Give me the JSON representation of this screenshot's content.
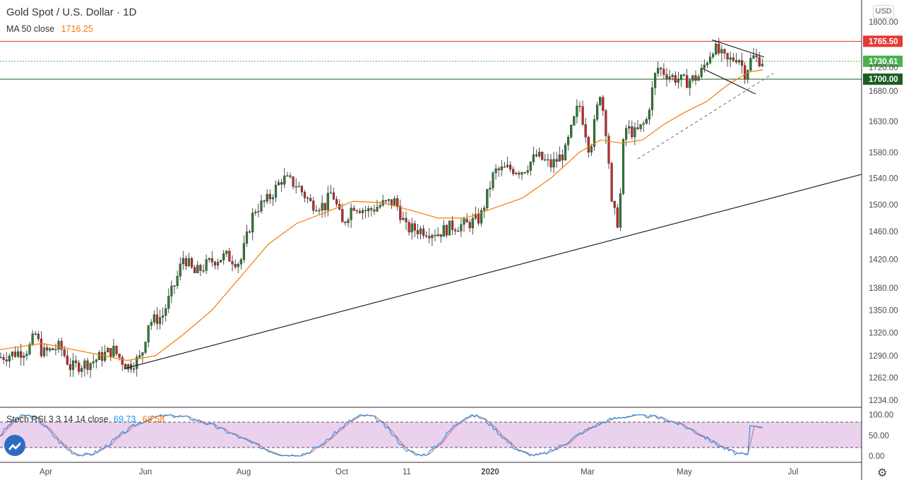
{
  "header": {
    "symbol": "Gold Spot",
    "quote": "U.S. Dollar",
    "interval": "1D",
    "ma_label": "MA 50 close",
    "ma_value": "1716.25"
  },
  "stoch": {
    "label": "Stoch RSI 3 3 14 14 close",
    "k_value": "69.73",
    "d_value": "68.58"
  },
  "currency": "USD",
  "colors": {
    "up": "#26a69a",
    "up_body": "#2e7d32",
    "down": "#c62828",
    "ma": "#f57c00",
    "stoch_k": "#2196f3",
    "stoch_d": "#e57373",
    "band": "#e1bee7",
    "resistance": "#e53935",
    "support": "#1b5e20",
    "price": "#4caf50"
  },
  "chart_data": [
    {
      "type": "candlestick",
      "title": "Gold Spot / U.S. Dollar · 1D",
      "y_axis": {
        "ticks": [
          1800.0,
          1765.5,
          1730.61,
          1720.0,
          1700.0,
          1680.0,
          1630.0,
          1580.0,
          1540.0,
          1500.0,
          1460.0,
          1420.0,
          1380.0,
          1350.0,
          1320.0,
          1290.0,
          1262.0,
          1234.0
        ],
        "scale": "log",
        "range": [
          1230,
          1812
        ]
      },
      "x_axis": {
        "ticks": [
          "Apr",
          "Jun",
          "Aug",
          "Oct",
          "11",
          "2020",
          "Mar",
          "May",
          "Jul"
        ]
      },
      "horizontal_levels": [
        {
          "value": 1765.5,
          "label": "1765.50",
          "color": "#e53935"
        },
        {
          "value": 1700.0,
          "label": "1700.00",
          "color": "#1b5e20"
        },
        {
          "value": 1730.61,
          "label": "1730.61",
          "color": "#4caf50",
          "style": "dotted"
        }
      ],
      "price_path_approx": [
        [
          0,
          1288
        ],
        [
          40,
          1298
        ],
        [
          50,
          1318
        ],
        [
          60,
          1293
        ],
        [
          85,
          1302
        ],
        [
          100,
          1275
        ],
        [
          130,
          1282
        ],
        [
          160,
          1298
        ],
        [
          180,
          1276
        ],
        [
          200,
          1288
        ],
        [
          210,
          1333
        ],
        [
          230,
          1342
        ],
        [
          250,
          1392
        ],
        [
          260,
          1425
        ],
        [
          275,
          1400
        ],
        [
          300,
          1418
        ],
        [
          320,
          1425
        ],
        [
          340,
          1415
        ],
        [
          360,
          1492
        ],
        [
          380,
          1508
        ],
        [
          400,
          1540
        ],
        [
          420,
          1530
        ],
        [
          440,
          1502
        ],
        [
          460,
          1498
        ],
        [
          470,
          1520
        ],
        [
          485,
          1470
        ],
        [
          500,
          1500
        ],
        [
          520,
          1490
        ],
        [
          540,
          1500
        ],
        [
          560,
          1505
        ],
        [
          575,
          1465
        ],
        [
          600,
          1462
        ],
        [
          620,
          1458
        ],
        [
          640,
          1468
        ],
        [
          660,
          1470
        ],
        [
          680,
          1480
        ],
        [
          700,
          1550
        ],
        [
          720,
          1555
        ],
        [
          740,
          1552
        ],
        [
          760,
          1575
        ],
        [
          780,
          1560
        ],
        [
          800,
          1580
        ],
        [
          820,
          1660
        ],
        [
          835,
          1582
        ],
        [
          850,
          1680
        ],
        [
          860,
          1600
        ],
        [
          866,
          1498
        ],
        [
          876,
          1470
        ],
        [
          884,
          1620
        ],
        [
          900,
          1610
        ],
        [
          915,
          1630
        ],
        [
          930,
          1720
        ],
        [
          950,
          1705
        ],
        [
          970,
          1695
        ],
        [
          990,
          1705
        ],
        [
          1000,
          1730
        ],
        [
          1010,
          1755
        ],
        [
          1030,
          1730
        ],
        [
          1045,
          1740
        ],
        [
          1055,
          1710
        ],
        [
          1065,
          1738
        ],
        [
          1080,
          1731
        ]
      ],
      "series": [
        {
          "name": "MA 50 close",
          "points": [
            [
              0,
              1298
            ],
            [
              60,
              1306
            ],
            [
              120,
              1295
            ],
            [
              180,
              1284
            ],
            [
              220,
              1290
            ],
            [
              260,
              1318
            ],
            [
              300,
              1350
            ],
            [
              340,
              1395
            ],
            [
              380,
              1442
            ],
            [
              420,
              1472
            ],
            [
              460,
              1488
            ],
            [
              500,
              1505
            ],
            [
              540,
              1503
            ],
            [
              580,
              1492
            ],
            [
              620,
              1480
            ],
            [
              660,
              1480
            ],
            [
              700,
              1495
            ],
            [
              740,
              1510
            ],
            [
              780,
              1540
            ],
            [
              820,
              1580
            ],
            [
              850,
              1600
            ],
            [
              880,
              1595
            ],
            [
              910,
              1600
            ],
            [
              940,
              1625
            ],
            [
              970,
              1645
            ],
            [
              1000,
              1662
            ],
            [
              1030,
              1690
            ],
            [
              1060,
              1712
            ],
            [
              1080,
              1716
            ]
          ]
        }
      ],
      "trendlines": [
        {
          "name": "long-term support",
          "from": [
            178,
            1274
          ],
          "to": [
            1220,
            1546
          ]
        },
        {
          "name": "triangle upper",
          "from": [
            1008,
            1768
          ],
          "to": [
            1082,
            1738
          ]
        },
        {
          "name": "triangle lower",
          "from": [
            995,
            1718
          ],
          "to": [
            1070,
            1675
          ]
        },
        {
          "name": "dashed support",
          "from": [
            903,
            1570
          ],
          "to": [
            1095,
            1710
          ]
        }
      ]
    },
    {
      "type": "line",
      "title": "Stoch RSI 3 3 14 14 close",
      "y_axis": {
        "ticks": [
          100.0,
          50.0,
          0.0
        ],
        "range": [
          0,
          100
        ]
      },
      "bands": [
        20,
        80
      ],
      "last_values": {
        "k": 69.73,
        "d": 68.58
      }
    }
  ]
}
